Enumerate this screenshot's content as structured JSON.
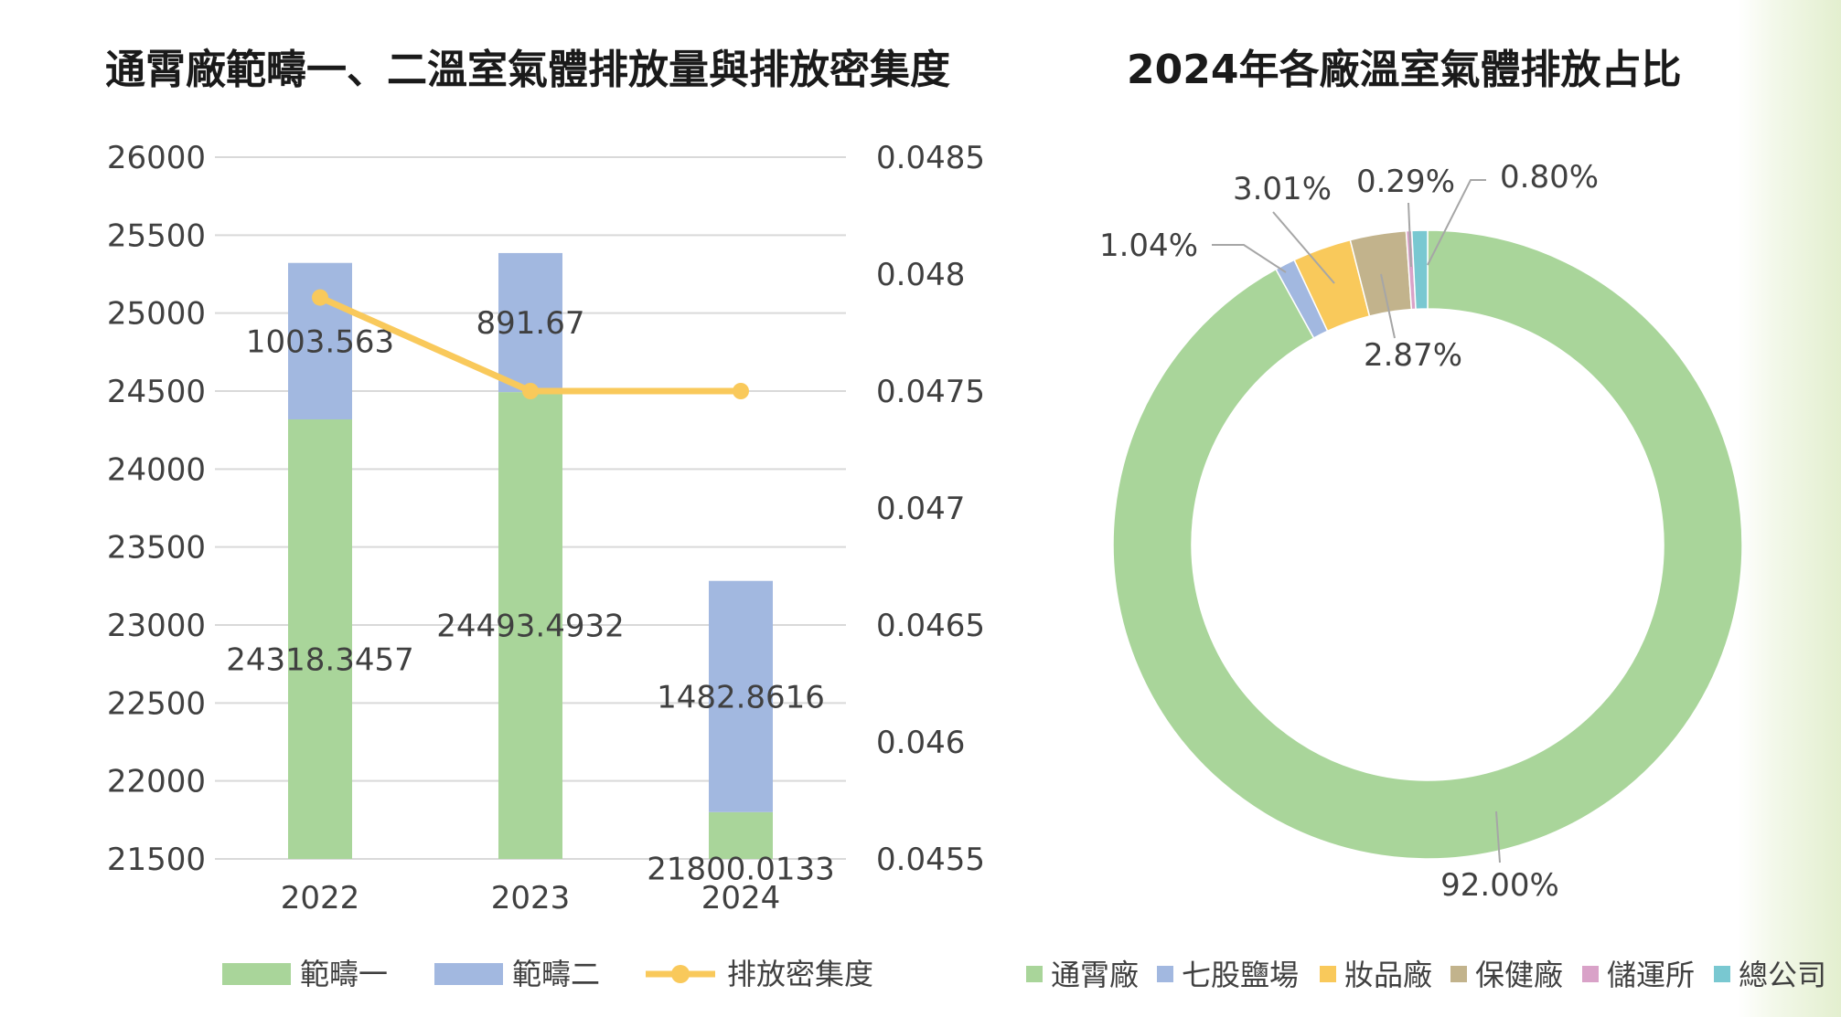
{
  "charts": [
    {
      "title": "通霄廠範疇一、二溫室氣體排放量與排放密集度",
      "chart_data": {
        "type": "bar",
        "subtype": "stacked-bar-with-line",
        "categories": [
          "2022",
          "2023",
          "2024"
        ],
        "series": [
          {
            "name": "範疇一",
            "axis": "left",
            "color": "#a9d59a",
            "values": [
              24318.3457,
              24493.4932,
              21800.0133
            ],
            "labels": [
              "24318.3457",
              "24493.4932",
              "21800.0133"
            ]
          },
          {
            "name": "範疇二",
            "axis": "left",
            "color": "#a2b8e0",
            "values": [
              1003.563,
              891.67,
              1482.8616
            ],
            "labels": [
              "1003.563",
              "891.67",
              "1482.8616"
            ]
          },
          {
            "name": "排放密集度",
            "axis": "right",
            "type": "line",
            "color": "#f9c95b",
            "values": [
              0.0479,
              0.0475,
              0.0475
            ]
          }
        ],
        "y_left": {
          "min": 21500,
          "max": 26000,
          "ticks": [
            "21500",
            "22000",
            "22500",
            "23000",
            "23500",
            "24000",
            "24500",
            "25000",
            "25500",
            "26000"
          ]
        },
        "y_right": {
          "min": 0.0455,
          "max": 0.0485,
          "ticks": [
            "0.0455",
            "0.046",
            "0.0465",
            "0.047",
            "0.0475",
            "0.048",
            "0.0485"
          ]
        },
        "grid": true,
        "legend_position": "bottom"
      }
    },
    {
      "title": "2024年各廠溫室氣體排放占比",
      "chart_data": {
        "type": "pie",
        "subtype": "donut",
        "slices": [
          {
            "name": "通霄廠",
            "value": 92.0,
            "label": "92.00%",
            "color": "#a9d59a"
          },
          {
            "name": "七股鹽場",
            "value": 1.04,
            "label": "1.04%",
            "color": "#a2b8e0"
          },
          {
            "name": "妝品廠",
            "value": 3.01,
            "label": "3.01%",
            "color": "#f9c95b"
          },
          {
            "name": "保健廠",
            "value": 2.87,
            "label": "2.87%",
            "color": "#c2b38c"
          },
          {
            "name": "儲運所",
            "value": 0.29,
            "label": "0.29%",
            "color": "#d9a2c8"
          },
          {
            "name": "總公司",
            "value": 0.8,
            "label": "0.80%",
            "color": "#79c8d1"
          }
        ],
        "legend_position": "bottom"
      }
    }
  ]
}
